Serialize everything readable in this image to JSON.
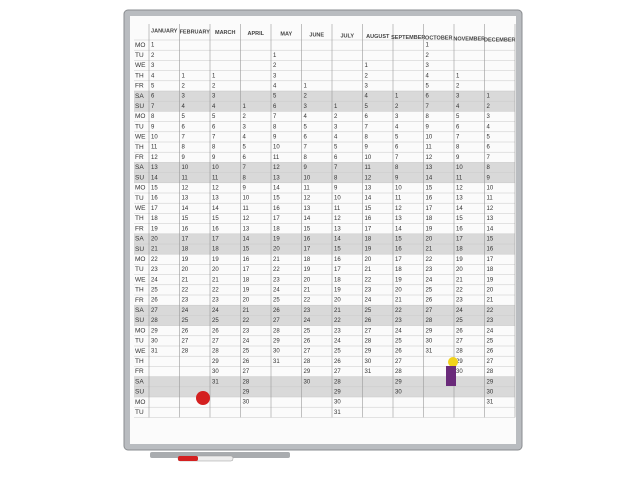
{
  "planner": {
    "weekdays": [
      "MO",
      "TU",
      "WE",
      "TH",
      "FR",
      "SA",
      "SU",
      "MO",
      "TU",
      "WE",
      "TH",
      "FR",
      "SA",
      "SU",
      "MO",
      "TU",
      "WE",
      "TH",
      "FR",
      "SA",
      "SU",
      "MO",
      "TU",
      "WE",
      "TH",
      "FR",
      "SA",
      "SU",
      "MO",
      "TU",
      "WE",
      "TH",
      "FR",
      "SA",
      "SU",
      "MO",
      "TU"
    ],
    "months": [
      {
        "name": "JANUARY",
        "days": [
          1,
          2,
          3,
          4,
          5,
          6,
          7,
          8,
          9,
          10,
          11,
          12,
          13,
          14,
          15,
          16,
          17,
          18,
          19,
          20,
          21,
          22,
          23,
          24,
          25,
          26,
          27,
          28,
          29,
          30,
          31
        ]
      },
      {
        "name": "FEBRUARY",
        "days": [
          null,
          null,
          null,
          1,
          2,
          3,
          4,
          5,
          6,
          7,
          8,
          9,
          10,
          11,
          12,
          13,
          14,
          15,
          16,
          17,
          18,
          19,
          20,
          21,
          22,
          23,
          24,
          25,
          26,
          27,
          28
        ]
      },
      {
        "name": "MARCH",
        "days": [
          null,
          null,
          null,
          1,
          2,
          3,
          4,
          5,
          6,
          7,
          8,
          9,
          10,
          11,
          12,
          13,
          14,
          15,
          16,
          17,
          18,
          19,
          20,
          21,
          22,
          23,
          24,
          25,
          26,
          27,
          28,
          29,
          30,
          31
        ]
      },
      {
        "name": "APRIL",
        "days": [
          null,
          null,
          null,
          null,
          null,
          null,
          1,
          2,
          3,
          4,
          5,
          6,
          7,
          8,
          9,
          10,
          11,
          12,
          13,
          14,
          15,
          16,
          17,
          18,
          19,
          20,
          21,
          22,
          23,
          24,
          25,
          26,
          27,
          28,
          29,
          30
        ]
      },
      {
        "name": "MAY",
        "days": [
          null,
          1,
          2,
          3,
          4,
          5,
          6,
          7,
          8,
          9,
          10,
          11,
          12,
          13,
          14,
          15,
          16,
          17,
          18,
          19,
          20,
          21,
          22,
          23,
          24,
          25,
          26,
          27,
          28,
          29,
          30,
          31
        ]
      },
      {
        "name": "JUNE",
        "days": [
          null,
          null,
          null,
          null,
          1,
          2,
          3,
          4,
          5,
          6,
          7,
          8,
          9,
          10,
          11,
          12,
          13,
          14,
          15,
          16,
          17,
          18,
          19,
          20,
          21,
          22,
          23,
          24,
          25,
          26,
          27,
          28,
          29,
          30
        ]
      },
      {
        "name": "JULY",
        "days": [
          null,
          null,
          null,
          null,
          null,
          null,
          1,
          2,
          3,
          4,
          5,
          6,
          7,
          8,
          9,
          10,
          11,
          12,
          13,
          14,
          15,
          16,
          17,
          18,
          19,
          20,
          21,
          22,
          23,
          24,
          25,
          26,
          27,
          28,
          29,
          30,
          31
        ]
      },
      {
        "name": "AUGUST",
        "days": [
          null,
          null,
          1,
          2,
          3,
          4,
          5,
          6,
          7,
          8,
          9,
          10,
          11,
          12,
          13,
          14,
          15,
          16,
          17,
          18,
          19,
          20,
          21,
          22,
          23,
          24,
          25,
          26,
          27,
          28,
          29,
          30,
          31
        ]
      },
      {
        "name": "SEPTEMBER",
        "days": [
          null,
          null,
          null,
          null,
          null,
          1,
          2,
          3,
          4,
          5,
          6,
          7,
          8,
          9,
          10,
          11,
          12,
          13,
          14,
          15,
          16,
          17,
          18,
          19,
          20,
          21,
          22,
          23,
          24,
          25,
          26,
          27,
          28,
          29,
          30
        ]
      },
      {
        "name": "OCTOBER",
        "days": [
          1,
          2,
          3,
          4,
          5,
          6,
          7,
          8,
          9,
          10,
          11,
          12,
          13,
          14,
          15,
          16,
          17,
          18,
          19,
          20,
          21,
          22,
          23,
          24,
          25,
          26,
          27,
          28,
          29,
          30,
          31
        ]
      },
      {
        "name": "NOVEMBER",
        "days": [
          null,
          null,
          null,
          1,
          2,
          3,
          4,
          5,
          6,
          7,
          8,
          9,
          10,
          11,
          12,
          13,
          14,
          15,
          16,
          17,
          18,
          19,
          20,
          21,
          22,
          23,
          24,
          25,
          26,
          27,
          28,
          29,
          30
        ]
      },
      {
        "name": "DECEMBER",
        "days": [
          null,
          null,
          null,
          null,
          null,
          1,
          2,
          3,
          4,
          5,
          6,
          7,
          8,
          9,
          10,
          11,
          12,
          13,
          14,
          15,
          16,
          17,
          18,
          19,
          20,
          21,
          22,
          23,
          24,
          25,
          26,
          27,
          28,
          29,
          30,
          31
        ]
      }
    ]
  }
}
